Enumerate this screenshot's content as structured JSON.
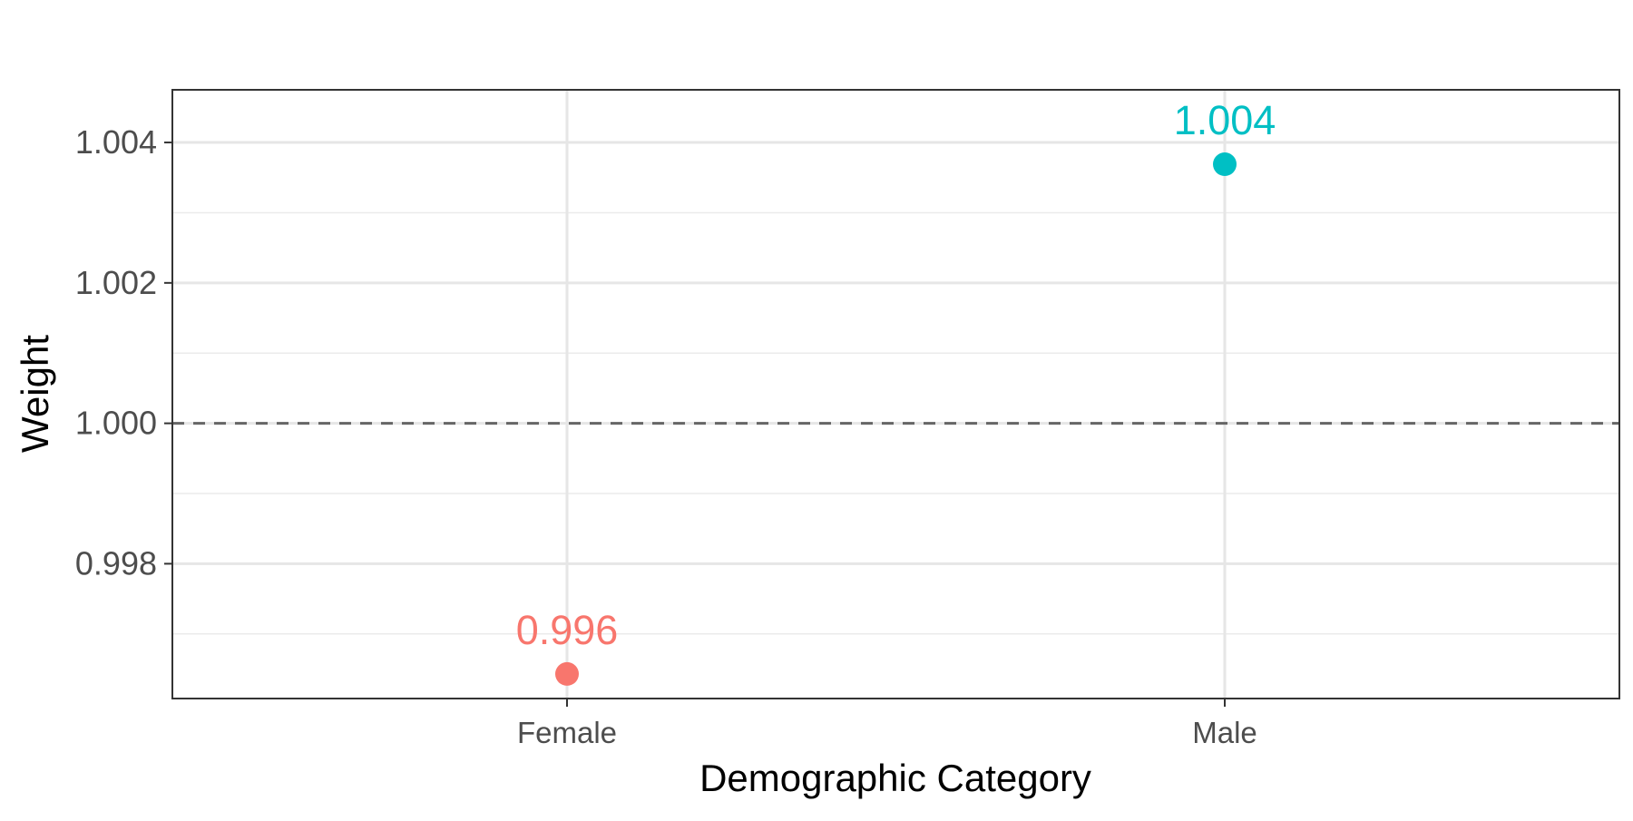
{
  "chart_data": {
    "type": "scatter",
    "title": "",
    "xlabel": "Demographic Category",
    "ylabel": "Weight",
    "categories": [
      "Female",
      "Male"
    ],
    "points": [
      {
        "category": "Female",
        "value": 0.99643,
        "label": "0.996",
        "color": "#F8766D"
      },
      {
        "category": "Male",
        "value": 1.00369,
        "label": "1.004",
        "color": "#00BFC4"
      }
    ],
    "yticks": [
      {
        "value": 0.998,
        "label": "0.998"
      },
      {
        "value": 1.0,
        "label": "1.000"
      },
      {
        "value": 1.002,
        "label": "1.002"
      },
      {
        "value": 1.004,
        "label": "1.004"
      }
    ],
    "ylim": [
      0.99608,
      1.00475
    ],
    "reference_line": {
      "value": 1.0,
      "style": "dashed",
      "color": "#666666"
    },
    "grid": true,
    "legend": "none"
  }
}
